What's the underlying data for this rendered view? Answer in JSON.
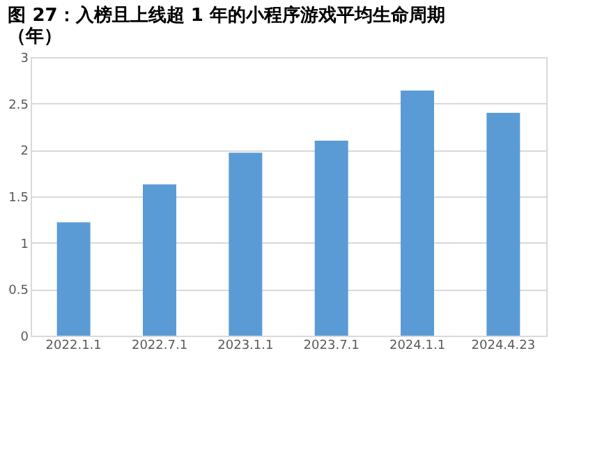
{
  "chart_data": {
    "type": "bar",
    "title": "图 27：入榜且上线超 1 年的小程序游戏平均生命周期（年）",
    "categories": [
      "2022.1.1",
      "2022.7.1",
      "2023.1.1",
      "2023.7.1",
      "2024.1.1",
      "2024.4.23"
    ],
    "values": [
      1.22,
      1.63,
      1.97,
      2.1,
      2.64,
      2.4
    ],
    "color": "#5b9bd5",
    "ylim": [
      0,
      3
    ],
    "yticks": [
      0,
      0.5,
      1,
      1.5,
      2,
      2.5,
      3
    ],
    "grid": "y"
  }
}
